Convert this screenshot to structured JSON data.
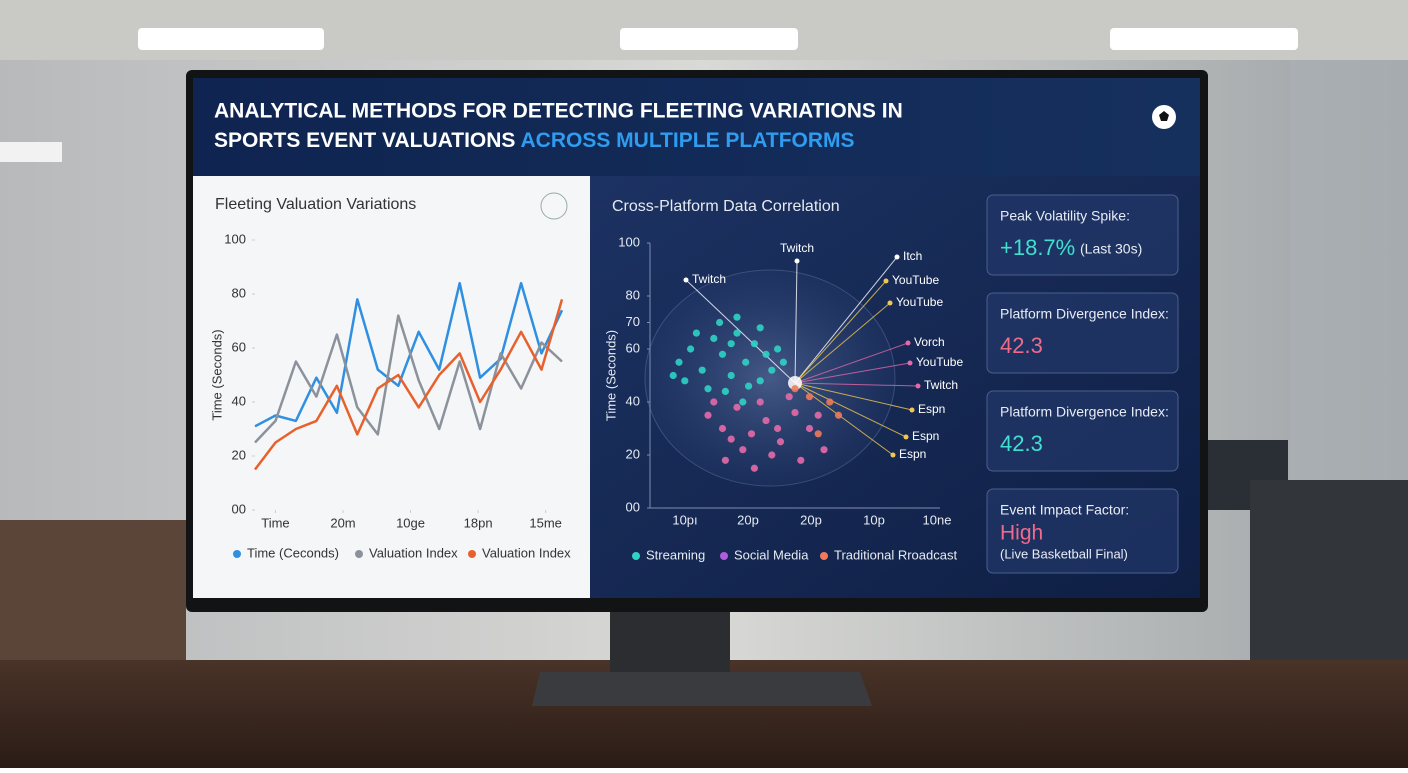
{
  "header": {
    "title_line1": "ANALYTICAL METHODS FOR DETECTING FLEETING VARIATIONS IN",
    "title_line2": "SPORTS EVENT VALUATIONS",
    "title_highlight": "ACROSS MULTIPLE PLATFORMS"
  },
  "chart_data": [
    {
      "type": "line",
      "title": "Fleeting Valuation Variations",
      "y_label": "Time (Seconds)",
      "x": [
        0,
        1,
        2,
        3,
        4,
        5,
        6,
        7,
        8,
        9,
        10,
        11,
        12,
        13,
        14,
        15
      ],
      "xlim": [
        0,
        15
      ],
      "xticks": [
        {
          "value": 1,
          "label": "Time"
        },
        {
          "value": 4.3,
          "label": "20m"
        },
        {
          "value": 7.6,
          "label": "10ge"
        },
        {
          "value": 10.9,
          "label": "18pn"
        },
        {
          "value": 14.2,
          "label": "15me"
        }
      ],
      "ylim": [
        0,
        100
      ],
      "yticks": [
        100,
        80,
        60,
        40,
        20,
        {
          "value": 0,
          "label": "00"
        }
      ],
      "series": [
        {
          "name": "Time (Ceconds)",
          "color": "#2f8fe0",
          "values": [
            31,
            35,
            33,
            49,
            36,
            78,
            52,
            46,
            66,
            52,
            84,
            49,
            56,
            84,
            58,
            74
          ]
        },
        {
          "name": "Valuation Index",
          "color": "#8c929b",
          "values": [
            25,
            33,
            55,
            42,
            65,
            38,
            28,
            72,
            48,
            30,
            55,
            30,
            58,
            45,
            62,
            55
          ]
        },
        {
          "name": "Valuation Index",
          "color": "#e8612c",
          "values": [
            15,
            25,
            30,
            33,
            46,
            28,
            45,
            50,
            38,
            50,
            58,
            40,
            52,
            66,
            52,
            78
          ]
        }
      ]
    },
    {
      "type": "scatter",
      "title": "Cross-Platform Data Correlation",
      "y_label": "Time (Seconds)",
      "xlim": [
        0,
        100
      ],
      "xtick_labels": [
        "10pı",
        "20p",
        "20p",
        "10p",
        "10ne"
      ],
      "ylim": [
        0,
        100
      ],
      "yticks": [
        100,
        70,
        80,
        60,
        40,
        20,
        {
          "value": 0,
          "label": "00"
        }
      ],
      "annotations": [
        "Twitch",
        "Twitch",
        "Itch",
        "YouTube",
        "YouTube",
        "Vorch",
        "YouTube",
        "Twitch",
        "Espn",
        "Espn",
        "Espn"
      ],
      "series": [
        {
          "name": "Streaming",
          "color": "#2fd3c4",
          "x": [
            10,
            14,
            18,
            22,
            25,
            28,
            30,
            33,
            36,
            38,
            40,
            42,
            44,
            20,
            26,
            34,
            12,
            16,
            24,
            30,
            46,
            38,
            28,
            8,
            32
          ],
          "y": [
            55,
            60,
            52,
            64,
            58,
            50,
            66,
            55,
            62,
            48,
            58,
            52,
            60,
            45,
            44,
            46,
            48,
            66,
            70,
            72,
            55,
            68,
            62,
            50,
            40
          ]
        },
        {
          "name": "Social Media",
          "color": "#e46aa8",
          "x": [
            20,
            25,
            30,
            35,
            40,
            45,
            50,
            55,
            60,
            42,
            32,
            48,
            38,
            28,
            52,
            58,
            22,
            44,
            36,
            26
          ],
          "y": [
            35,
            30,
            38,
            28,
            33,
            25,
            36,
            30,
            22,
            20,
            22,
            42,
            40,
            26,
            18,
            35,
            40,
            30,
            15,
            18
          ]
        },
        {
          "name": "Traditional Rroadcast",
          "color": "#f07a5a",
          "x": [
            62,
            55,
            65,
            50,
            58
          ],
          "y": [
            40,
            42,
            35,
            45,
            28
          ]
        }
      ]
    }
  ],
  "cards": [
    {
      "label": "Peak Volatility Spike:",
      "value": "+18.7%",
      "note": "(Last 30s)",
      "color": "#3fe0d0"
    },
    {
      "label": "Platform Divergence Index:",
      "value": "42.3",
      "color": "#f06a8a"
    },
    {
      "label": "Platform Divergence Index:",
      "value": "42.3",
      "color": "#3fe0d0"
    },
    {
      "label": "Event Impact Factor:",
      "value": "High",
      "note": "(Live Basketball Final)",
      "color": "#f06a8a"
    }
  ]
}
